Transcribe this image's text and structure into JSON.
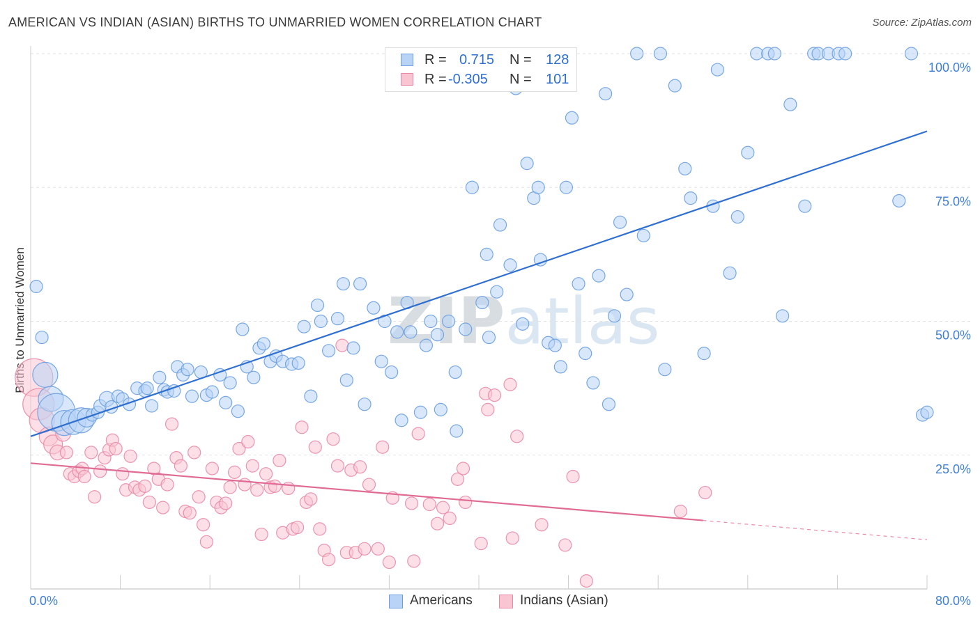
{
  "title": "AMERICAN VS INDIAN (ASIAN) BIRTHS TO UNMARRIED WOMEN CORRELATION CHART",
  "source": "Source: ZipAtlas.com",
  "watermark": {
    "zip": "ZIP",
    "atlas": "atlas"
  },
  "legend": {
    "r_label": "R =",
    "n_label": "N =",
    "rows": [
      {
        "r": "0.715",
        "n": "128",
        "fill": "#b8d3f5",
        "stroke": "#6a9ee0"
      },
      {
        "r": "-0.305",
        "n": "101",
        "fill": "#f9c5d3",
        "stroke": "#e88aa6"
      }
    ]
  },
  "bottom_legend": [
    {
      "label": "Americans",
      "fill": "#b8d3f5",
      "stroke": "#6a9ee0"
    },
    {
      "label": "Indians (Asian)",
      "fill": "#f9c5d3",
      "stroke": "#e88aa6"
    }
  ],
  "chart_data": {
    "type": "scatter",
    "title": "AMERICAN VS INDIAN (ASIAN) BIRTHS TO UNMARRIED WOMEN CORRELATION CHART",
    "xlabel": "",
    "ylabel": "Births to Unmarried Women",
    "xlim": [
      0,
      80
    ],
    "ylim": [
      0,
      100
    ],
    "x_tick_labels": [
      "0.0%",
      "80.0%"
    ],
    "y_tick_labels": [
      "25.0%",
      "50.0%",
      "75.0%",
      "100.0%"
    ],
    "y_ticks": [
      25,
      50,
      75,
      100
    ],
    "grid": "horizontal dashed",
    "legend_position": "top-center",
    "series": [
      {
        "name": "Americans",
        "color": "#6a9ee0",
        "fill": "#b8d3f5",
        "r": 0.715,
        "n": 128,
        "trend": {
          "x0": 0,
          "y0": 28.5,
          "x1": 80,
          "y1": 85.5
        },
        "points": [
          [
            0.5,
            56.5,
            1
          ],
          [
            1,
            47,
            1
          ],
          [
            1.3,
            40,
            2
          ],
          [
            1.8,
            35.5,
            2
          ],
          [
            2.3,
            33,
            3
          ],
          [
            3,
            31,
            2
          ],
          [
            3.8,
            31.2,
            2
          ],
          [
            4.5,
            31.5,
            2
          ],
          [
            5,
            32,
            1.5
          ],
          [
            5.5,
            32.5,
            1
          ],
          [
            6,
            33,
            1
          ],
          [
            6.2,
            34.2,
            1
          ],
          [
            6.8,
            35.5,
            1.2
          ],
          [
            7.2,
            34,
            1
          ],
          [
            7.8,
            36,
            1
          ],
          [
            8.2,
            35.5,
            1
          ],
          [
            8.8,
            34.5,
            1
          ],
          [
            9.5,
            37.5,
            1
          ],
          [
            10.2,
            37,
            1
          ],
          [
            10.4,
            37.5,
            1
          ],
          [
            10.8,
            34.2,
            1
          ],
          [
            11.5,
            39.5,
            1
          ],
          [
            11.9,
            37.2,
            1
          ],
          [
            12.2,
            36.8,
            1
          ],
          [
            12.8,
            37,
            1
          ],
          [
            13.1,
            41.5,
            1
          ],
          [
            13.6,
            40,
            1
          ],
          [
            14,
            41,
            1
          ],
          [
            14.4,
            36,
            1
          ],
          [
            15.2,
            40.5,
            1
          ],
          [
            15.7,
            36.2,
            1
          ],
          [
            16.2,
            36.8,
            1
          ],
          [
            16.9,
            40,
            1
          ],
          [
            17.4,
            34.8,
            1
          ],
          [
            17.8,
            38.5,
            1
          ],
          [
            18.5,
            33.2,
            1
          ],
          [
            18.9,
            48.5,
            1
          ],
          [
            19.3,
            41.5,
            1
          ],
          [
            19.9,
            39.5,
            1
          ],
          [
            20.4,
            45,
            1
          ],
          [
            20.8,
            45.8,
            1
          ],
          [
            21.4,
            42.5,
            1
          ],
          [
            21.9,
            43.5,
            1
          ],
          [
            22.5,
            42.5,
            1
          ],
          [
            23.3,
            42,
            1
          ],
          [
            23.9,
            42.2,
            1
          ],
          [
            24.4,
            49,
            1
          ],
          [
            25,
            36,
            1
          ],
          [
            25.6,
            53,
            1
          ],
          [
            25.9,
            50,
            1
          ],
          [
            26.6,
            44.5,
            1
          ],
          [
            27.4,
            50.5,
            1
          ],
          [
            27.9,
            57,
            1
          ],
          [
            28.2,
            39,
            1
          ],
          [
            28.8,
            45,
            1
          ],
          [
            29.4,
            57,
            1
          ],
          [
            29.8,
            34.5,
            1
          ],
          [
            30.6,
            52.5,
            1
          ],
          [
            31.3,
            42.5,
            1
          ],
          [
            31.6,
            50,
            1
          ],
          [
            32.2,
            40.5,
            1
          ],
          [
            32.7,
            48,
            1
          ],
          [
            33.1,
            31.5,
            1
          ],
          [
            33.6,
            53.5,
            1
          ],
          [
            33.9,
            48,
            1
          ],
          [
            34.8,
            33,
            1
          ],
          [
            35.3,
            45.5,
            1
          ],
          [
            35.7,
            50,
            1
          ],
          [
            36.3,
            47.5,
            1
          ],
          [
            36.6,
            33.5,
            1
          ],
          [
            37.3,
            50,
            1
          ],
          [
            37.9,
            40.5,
            1
          ],
          [
            38,
            29.5,
            1
          ],
          [
            38.8,
            48.5,
            1
          ],
          [
            39.4,
            75,
            1
          ],
          [
            40.3,
            53.5,
            1
          ],
          [
            40.7,
            62.5,
            1
          ],
          [
            40.9,
            47,
            1
          ],
          [
            41.6,
            55.5,
            1
          ],
          [
            41.9,
            68,
            1
          ],
          [
            42.8,
            60.5,
            1
          ],
          [
            43.3,
            93.5,
            1
          ],
          [
            43.9,
            49.5,
            1
          ],
          [
            44.3,
            79.5,
            1
          ],
          [
            44.9,
            73,
            1
          ],
          [
            45.3,
            75,
            1
          ],
          [
            45.5,
            61.5,
            1
          ],
          [
            46.2,
            46,
            1
          ],
          [
            46.8,
            45.5,
            1
          ],
          [
            47.3,
            41.5,
            1
          ],
          [
            47.8,
            75,
            1
          ],
          [
            48.3,
            88,
            1
          ],
          [
            48.9,
            57,
            1
          ],
          [
            49.5,
            44,
            1
          ],
          [
            50.2,
            38.5,
            1
          ],
          [
            50.7,
            58.5,
            1
          ],
          [
            51.3,
            92.5,
            1
          ],
          [
            51.6,
            34.5,
            1
          ],
          [
            52.1,
            51,
            1
          ],
          [
            52.6,
            68.5,
            1
          ],
          [
            53.2,
            55,
            1
          ],
          [
            54.1,
            100,
            1
          ],
          [
            54.7,
            66,
            1
          ],
          [
            56.2,
            100,
            1
          ],
          [
            56.6,
            41,
            1
          ],
          [
            57.5,
            94,
            1
          ],
          [
            58.4,
            78.5,
            1
          ],
          [
            58.9,
            73,
            1
          ],
          [
            60.1,
            44,
            1
          ],
          [
            60.9,
            71.5,
            1
          ],
          [
            61.3,
            97,
            1
          ],
          [
            62.4,
            59,
            1
          ],
          [
            63.1,
            69.5,
            1
          ],
          [
            64,
            81.5,
            1
          ],
          [
            64.8,
            100,
            1
          ],
          [
            65.8,
            100,
            1
          ],
          [
            66.4,
            100,
            1
          ],
          [
            67.1,
            51,
            1
          ],
          [
            67.8,
            90.5,
            1
          ],
          [
            69.1,
            71.5,
            1
          ],
          [
            69.9,
            100,
            1
          ],
          [
            70.3,
            100,
            1
          ],
          [
            71.2,
            100,
            1
          ],
          [
            72.1,
            100,
            1
          ],
          [
            72.7,
            100,
            1
          ],
          [
            77.5,
            72.5,
            1
          ],
          [
            78.6,
            100,
            1
          ],
          [
            79.6,
            32.5,
            1
          ],
          [
            80,
            33,
            1
          ]
        ]
      },
      {
        "name": "Indians (Asian)",
        "color": "#e88aa6",
        "fill": "#f9c5d3",
        "r": -0.305,
        "n": 101,
        "trend": {
          "x0": 0,
          "y0": 23.5,
          "x1": 60,
          "y1": 12.8,
          "dash_to_x": 80,
          "dash_to_y": 9.2
        },
        "points": [
          [
            0.3,
            39.5,
            3
          ],
          [
            0.7,
            34.5,
            2.5
          ],
          [
            1,
            31.5,
            2
          ],
          [
            1.6,
            28.5,
            1.5
          ],
          [
            2,
            27,
            1.5
          ],
          [
            2.4,
            25.5,
            1.2
          ],
          [
            2.9,
            29,
            1.2
          ],
          [
            3.2,
            25.5,
            1
          ],
          [
            3.5,
            21.5,
            1
          ],
          [
            3.9,
            21,
            1
          ],
          [
            4.3,
            22,
            1
          ],
          [
            4.6,
            22.5,
            1
          ],
          [
            4.8,
            21,
            1
          ],
          [
            5.4,
            25.5,
            1
          ],
          [
            5.7,
            17.2,
            1
          ],
          [
            6.2,
            22,
            1
          ],
          [
            6.6,
            24.5,
            1
          ],
          [
            7,
            26,
            1
          ],
          [
            7.3,
            27.8,
            1
          ],
          [
            7.6,
            26.2,
            1
          ],
          [
            8.2,
            21.5,
            1
          ],
          [
            8.5,
            18.5,
            1
          ],
          [
            8.9,
            24.8,
            1
          ],
          [
            9.3,
            19,
            1
          ],
          [
            9.7,
            18.5,
            1
          ],
          [
            10.2,
            19.2,
            1
          ],
          [
            10.6,
            16.2,
            1
          ],
          [
            11,
            22.5,
            1
          ],
          [
            11.4,
            20.5,
            1
          ],
          [
            11.8,
            15.2,
            1
          ],
          [
            12.2,
            19.5,
            1
          ],
          [
            12.6,
            30.8,
            1
          ],
          [
            13,
            24.5,
            1
          ],
          [
            13.4,
            23,
            1
          ],
          [
            13.8,
            14.5,
            1
          ],
          [
            14.2,
            14.2,
            1
          ],
          [
            14.6,
            25.5,
            1
          ],
          [
            15,
            17.2,
            1
          ],
          [
            15.4,
            12,
            1
          ],
          [
            15.7,
            8.8,
            1
          ],
          [
            16.2,
            22.5,
            1
          ],
          [
            16.6,
            16.2,
            1
          ],
          [
            17,
            15.2,
            1
          ],
          [
            17.4,
            16,
            1
          ],
          [
            17.8,
            19,
            1
          ],
          [
            18.2,
            21.8,
            1
          ],
          [
            18.6,
            26.2,
            1
          ],
          [
            19.1,
            19.5,
            1
          ],
          [
            19.4,
            27.5,
            1
          ],
          [
            19.8,
            23,
            1
          ],
          [
            20.2,
            18.5,
            1
          ],
          [
            20.6,
            10.2,
            1
          ],
          [
            21,
            21.5,
            1
          ],
          [
            21.4,
            19,
            1
          ],
          [
            21.8,
            19.2,
            1
          ],
          [
            22.2,
            24,
            1
          ],
          [
            22.5,
            10.5,
            1
          ],
          [
            23,
            18.8,
            1
          ],
          [
            23.4,
            11.2,
            1
          ],
          [
            23.8,
            11.5,
            1
          ],
          [
            24.2,
            30.2,
            1
          ],
          [
            24.6,
            16.2,
            1
          ],
          [
            25,
            16.8,
            1
          ],
          [
            25.4,
            26.5,
            1
          ],
          [
            25.8,
            11.2,
            1
          ],
          [
            26.2,
            7.2,
            1
          ],
          [
            26.6,
            5.5,
            1
          ],
          [
            27,
            28,
            1
          ],
          [
            27.4,
            23,
            1
          ],
          [
            27.8,
            45.5,
            1
          ],
          [
            28.2,
            6.8,
            1
          ],
          [
            28.6,
            22.2,
            1
          ],
          [
            29,
            6.8,
            1
          ],
          [
            29.4,
            22.8,
            1
          ],
          [
            29.8,
            7.5,
            1
          ],
          [
            30.2,
            19.5,
            1
          ],
          [
            31,
            7.5,
            1
          ],
          [
            31.4,
            26.5,
            1
          ],
          [
            32,
            5,
            1
          ],
          [
            32.3,
            17,
            1
          ],
          [
            34,
            16,
            1
          ],
          [
            34.2,
            5.2,
            1
          ],
          [
            34.6,
            29,
            1
          ],
          [
            35.6,
            15.8,
            1
          ],
          [
            36.3,
            12.2,
            1
          ],
          [
            36.8,
            15.2,
            1
          ],
          [
            37.4,
            13.2,
            1
          ],
          [
            38.1,
            20.5,
            1
          ],
          [
            38.6,
            22.5,
            1
          ],
          [
            38.8,
            16.2,
            1
          ],
          [
            40.2,
            8.5,
            1
          ],
          [
            40.6,
            36.5,
            1
          ],
          [
            40.8,
            33.5,
            1
          ],
          [
            41.4,
            36.2,
            1
          ],
          [
            42.8,
            38.2,
            1
          ],
          [
            43,
            9.5,
            1
          ],
          [
            43.4,
            28.5,
            1
          ],
          [
            45.6,
            12,
            1
          ],
          [
            47.7,
            8.2,
            1
          ],
          [
            48.4,
            21,
            1
          ],
          [
            49.6,
            1.5,
            1
          ],
          [
            58,
            14.5,
            1
          ],
          [
            60.2,
            18,
            1
          ]
        ]
      }
    ]
  }
}
